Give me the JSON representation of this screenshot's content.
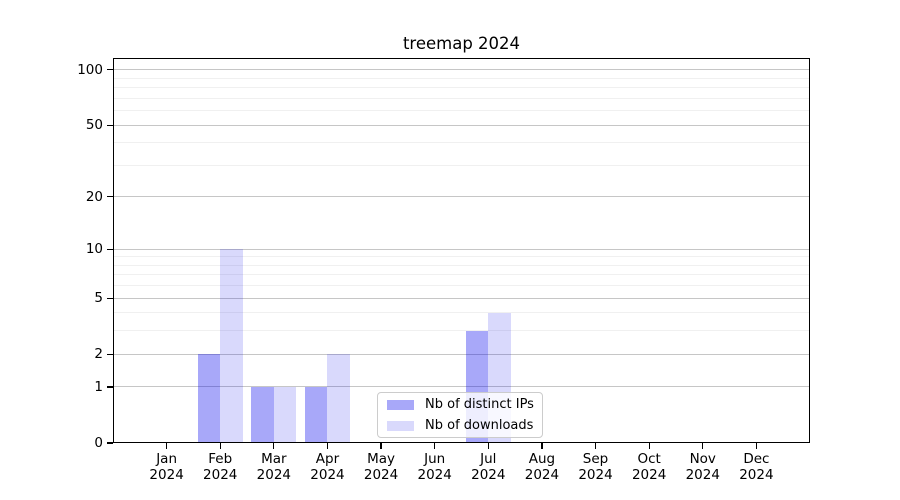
{
  "chart_data": {
    "type": "bar",
    "title": "treemap 2024",
    "categories": [
      "Jan",
      "Feb",
      "Mar",
      "Apr",
      "May",
      "Jun",
      "Jul",
      "Aug",
      "Sep",
      "Oct",
      "Nov",
      "Dec"
    ],
    "x_tick_second_line": "2024",
    "series": [
      {
        "name": "Nb of distinct IPs",
        "color": "rgba(0,0,238,0.34)",
        "values": [
          0,
          2,
          1,
          1,
          0,
          0,
          3,
          0,
          0,
          0,
          0,
          0
        ]
      },
      {
        "name": "Nb of downloads",
        "color": "rgba(0,0,238,0.15)",
        "values": [
          0,
          10,
          1,
          2,
          0,
          0,
          4,
          0,
          0,
          0,
          0,
          0
        ]
      }
    ],
    "yscale": "log10(1+v)",
    "ylim": [
      0,
      116
    ],
    "y_major_ticks": [
      0,
      1,
      2,
      5,
      10,
      20,
      50,
      100
    ],
    "y_minor_ticks": [
      3,
      4,
      6,
      7,
      8,
      9,
      30,
      40,
      60,
      70,
      80,
      90
    ],
    "grid": "horizontal",
    "legend_position": "lower center, inside plot"
  }
}
